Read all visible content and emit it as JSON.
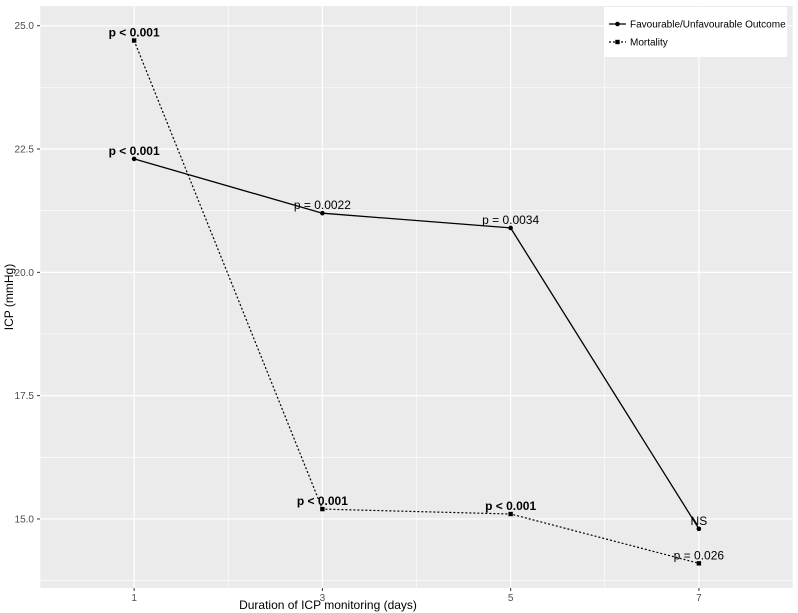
{
  "chart_data": {
    "type": "line",
    "xlabel": "Duration of ICP monitoring (days)",
    "ylabel": "ICP (mmHg)",
    "x_ticks": [
      "1",
      "3",
      "5",
      "7"
    ],
    "y_ticks": [
      "15.0",
      "17.5",
      "20.0",
      "22.5",
      "25.0"
    ],
    "xlim": [
      0,
      8
    ],
    "ylim": [
      13.6,
      25.4
    ],
    "grid": true,
    "legend_position": "top-right",
    "series": [
      {
        "name": "Favourable/Unfavourable Outcome",
        "line_style": "solid",
        "marker": "circle",
        "x": [
          1,
          3,
          5,
          7
        ],
        "y": [
          22.3,
          21.2,
          20.9,
          14.8
        ],
        "labels": [
          "p < 0.001",
          "p = 0.0022",
          "p = 0.0034",
          "NS"
        ],
        "labels_bold": [
          true,
          false,
          false,
          false
        ]
      },
      {
        "name": "Mortality",
        "line_style": "dotted",
        "marker": "square",
        "x": [
          1,
          3,
          5,
          7
        ],
        "y": [
          24.7,
          15.2,
          15.1,
          14.1
        ],
        "labels": [
          "p < 0.001",
          "p < 0.001",
          "p < 0.001",
          "p = 0.026"
        ],
        "labels_bold": [
          true,
          true,
          true,
          false
        ]
      }
    ],
    "colors": {
      "panel": "#ebebeb",
      "grid": "#ffffff",
      "line": "#000000"
    }
  }
}
